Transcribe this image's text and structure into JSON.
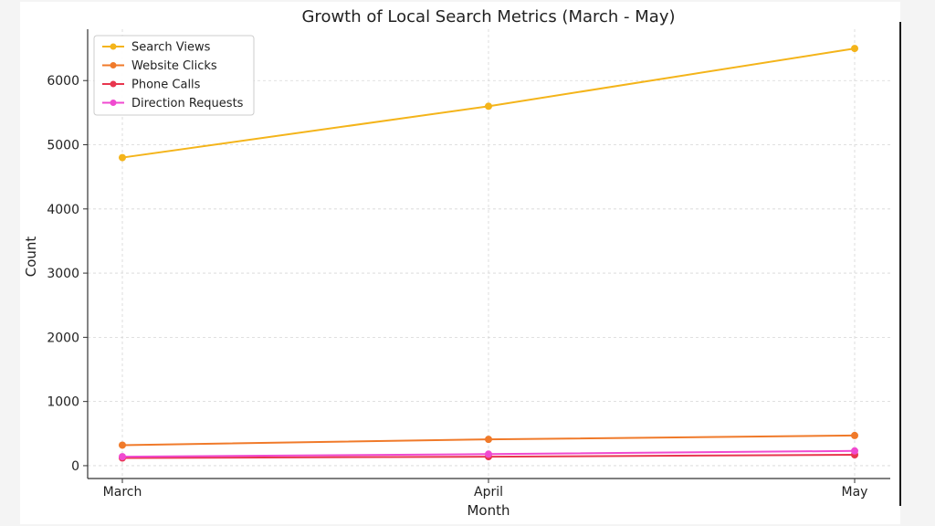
{
  "chart_data": {
    "type": "line",
    "title": "Growth of Local Search Metrics (March - May)",
    "xlabel": "Month",
    "ylabel": "Count",
    "categories": [
      "March",
      "April",
      "May"
    ],
    "ylim": [
      -200,
      6800
    ],
    "yticks": [
      0,
      1000,
      2000,
      3000,
      4000,
      5000,
      6000
    ],
    "grid": true,
    "legend_position": "top-left",
    "series": [
      {
        "name": "Search Views",
        "color": "#f4b41a",
        "values": [
          4800,
          5600,
          6500
        ]
      },
      {
        "name": "Website Clicks",
        "color": "#f07a2a",
        "values": [
          320,
          410,
          470
        ]
      },
      {
        "name": "Phone Calls",
        "color": "#e8364e",
        "values": [
          120,
          140,
          170
        ]
      },
      {
        "name": "Direction Requests",
        "color": "#f04ad0",
        "values": [
          140,
          180,
          230
        ]
      }
    ]
  }
}
